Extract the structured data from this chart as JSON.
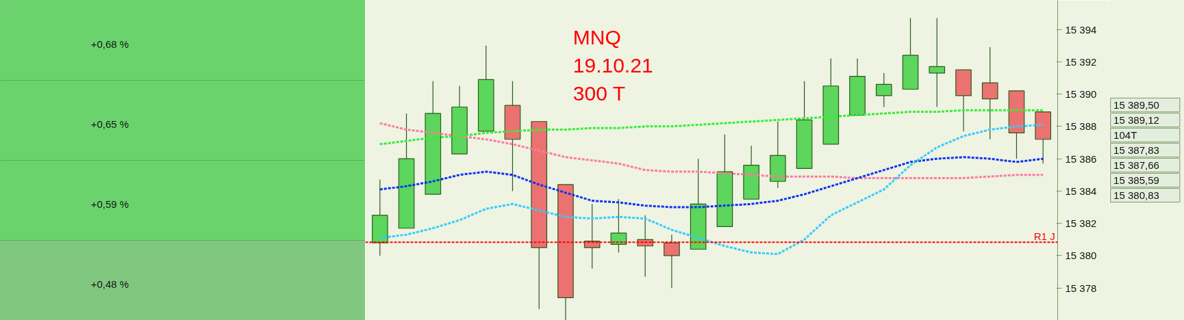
{
  "chart_data": [
    {
      "type": "other",
      "annotations": [
        "+0,68 %",
        "+0,65 %",
        "+0,59 %",
        "+0,48 %"
      ]
    },
    {
      "type": "candlestick",
      "title": "MNQ\n19.10.21\n300 T",
      "tick_labels": "y",
      "categories": [
        null,
        null,
        null,
        null,
        null,
        null,
        null,
        null,
        null,
        null,
        null,
        null,
        null,
        null,
        null,
        null,
        null,
        null,
        null,
        null,
        null,
        null,
        null,
        null,
        null,
        null
      ],
      "ohlc": [
        [
          15380.8,
          15384.7,
          15380.0,
          15382.5
        ],
        [
          15381.7,
          15388.8,
          15381.7,
          15386.0
        ],
        [
          15383.8,
          15390.8,
          15383.8,
          15388.8
        ],
        [
          15386.3,
          15390.5,
          15386.3,
          15389.2
        ],
        [
          15387.7,
          15393.0,
          15387.7,
          15390.9
        ],
        [
          15389.3,
          15390.8,
          15384.0,
          15387.2
        ],
        [
          15388.3,
          15388.3,
          15376.7,
          15380.5
        ],
        [
          15384.4,
          15384.4,
          15376.0,
          15377.4
        ],
        [
          15380.9,
          15383.2,
          15379.2,
          15380.5
        ],
        [
          15380.7,
          15383.5,
          15380.2,
          15381.4
        ],
        [
          15381.0,
          15382.5,
          15378.7,
          15380.6
        ],
        [
          15380.8,
          15381.3,
          15378.0,
          15380.0
        ],
        [
          15380.4,
          15386.0,
          15380.4,
          15383.2
        ],
        [
          15381.8,
          15387.5,
          15381.8,
          15385.2
        ],
        [
          15383.5,
          15386.8,
          15383.5,
          15385.6
        ],
        [
          15384.6,
          15388.3,
          15384.2,
          15386.2
        ],
        [
          15385.4,
          15390.8,
          15385.4,
          15388.4
        ],
        [
          15386.9,
          15392.2,
          15386.9,
          15390.5
        ],
        [
          15388.7,
          15392.2,
          15388.7,
          15391.1
        ],
        [
          15389.9,
          15391.3,
          15389.2,
          15390.6
        ],
        [
          15390.3,
          15394.7,
          15390.3,
          15392.4
        ],
        [
          15391.3,
          15394.7,
          15389.2,
          15391.7
        ],
        [
          15391.5,
          15391.5,
          15387.7,
          15389.9
        ],
        [
          15390.7,
          15392.9,
          15387.2,
          15389.7
        ],
        [
          15390.2,
          15390.2,
          15386.0,
          15387.6
        ],
        [
          15388.9,
          15388.9,
          15385.7,
          15387.2
        ]
      ],
      "colors": [
        "#5cd65c",
        "#5cd65c",
        "#5cd65c",
        "#5cd65c",
        "#5cd65c",
        "#ec7272",
        "#ec7272",
        "#ec7272",
        "#ec7272",
        "#5cd65c",
        "#ec7272",
        "#ec7272",
        "#5cd65c",
        "#5cd65c",
        "#5cd65c",
        "#5cd65c",
        "#5cd65c",
        "#5cd65c",
        "#5cd65c",
        "#5cd65c",
        "#5cd65c",
        "#5cd65c",
        "#ec7272",
        "#ec7272",
        "#ec7272",
        "#ec7272"
      ],
      "series": [
        {
          "type": "line",
          "color": "#ff7aa0",
          "line_style": "dashed",
          "values": [
            15388.2,
            15387.8,
            15387.6,
            15387.4,
            15387.2,
            15386.9,
            15386.5,
            15386.1,
            15385.9,
            15385.7,
            15385.3,
            15385.2,
            15385.2,
            15385.1,
            15385.0,
            15384.9,
            15384.9,
            15384.9,
            15384.8,
            15384.8,
            15384.8,
            15384.8,
            15384.8,
            15384.9,
            15385.0,
            15385.0
          ]
        },
        {
          "type": "line",
          "color": "#33ee33",
          "line_style": "dashed",
          "values": [
            15386.9,
            15387.1,
            15387.3,
            15387.4,
            15387.6,
            15387.7,
            15387.8,
            15387.8,
            15387.9,
            15387.9,
            15388.0,
            15388.0,
            15388.1,
            15388.2,
            15388.3,
            15388.4,
            15388.5,
            15388.6,
            15388.7,
            15388.8,
            15388.9,
            15388.9,
            15389.0,
            15389.0,
            15389.0,
            15389.0
          ]
        },
        {
          "type": "line",
          "color": "#0a32f0",
          "line_style": "dashed",
          "values": [
            15384.1,
            15384.3,
            15384.6,
            15385.0,
            15385.2,
            15385.0,
            15384.4,
            15383.9,
            15383.4,
            15383.3,
            15383.1,
            15383.0,
            15383.0,
            15383.1,
            15383.2,
            15383.4,
            15383.8,
            15384.3,
            15384.8,
            15385.3,
            15385.8,
            15386.0,
            15386.1,
            15386.0,
            15385.8,
            15386.0
          ]
        },
        {
          "type": "line",
          "color": "#33ccff",
          "line_style": "dashed",
          "values": [
            15381.1,
            15381.3,
            15381.7,
            15382.2,
            15382.9,
            15383.2,
            15382.8,
            15382.4,
            15382.3,
            15382.4,
            15382.3,
            15381.6,
            15381.1,
            15380.6,
            15380.2,
            15380.1,
            15381.0,
            15382.5,
            15383.3,
            15384.1,
            15385.6,
            15386.7,
            15387.4,
            15387.8,
            15388.0,
            15388.1
          ]
        }
      ],
      "ref_lines": [
        {
          "axis": "y",
          "value": 15380.83,
          "label": "R1 J",
          "color": "#ff0000",
          "line_style": "dashed"
        }
      ],
      "annotations": [
        "15 389,50",
        "15 389,12",
        "104T",
        "15 387,83",
        "15 387,66",
        "15 385,59",
        "15 380,83"
      ],
      "ylim": [
        15376.0,
        15395.8
      ],
      "yticks": [
        {
          "value": 15378,
          "label": "15 378"
        },
        {
          "value": 15380,
          "label": "15 380"
        },
        {
          "value": 15382,
          "label": "15 382"
        },
        {
          "value": 15384,
          "label": "15 384"
        },
        {
          "value": 15386,
          "label": "15 386"
        },
        {
          "value": 15388,
          "label": "15 388"
        },
        {
          "value": 15390,
          "label": "15 390"
        },
        {
          "value": 15392,
          "label": "15 392"
        },
        {
          "value": 15394,
          "label": "15 394"
        }
      ]
    }
  ]
}
